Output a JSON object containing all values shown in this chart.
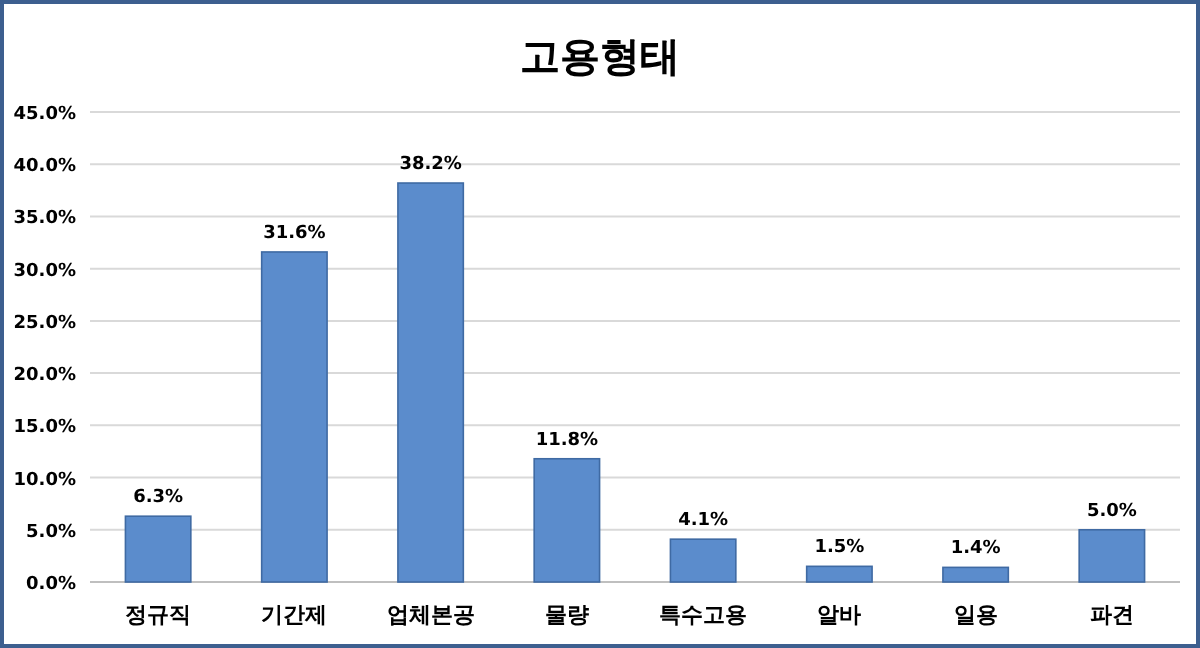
{
  "chart_data": {
    "type": "bar",
    "title": "고용형태",
    "categories": [
      "정규직",
      "기간제",
      "업체본공",
      "물량",
      "특수고용",
      "알바",
      "일용",
      "파견"
    ],
    "values": [
      6.3,
      31.6,
      38.2,
      11.8,
      4.1,
      1.5,
      1.4,
      5.0
    ],
    "value_labels": [
      "6.3%",
      "31.6%",
      "38.2%",
      "11.8%",
      "4.1%",
      "1.5%",
      "1.4%",
      "5.0%"
    ],
    "color": "#5b8ccc",
    "ylim": [
      0,
      45
    ],
    "yticks": [
      {
        "value": 0,
        "label": "0.0%"
      },
      {
        "value": 5,
        "label": "5.0%"
      },
      {
        "value": 10,
        "label": "10.0%"
      },
      {
        "value": 15,
        "label": "15.0%"
      },
      {
        "value": 20,
        "label": "20.0%"
      },
      {
        "value": 25,
        "label": "25.0%"
      },
      {
        "value": 30,
        "label": "30.0%"
      },
      {
        "value": 35,
        "label": "35.0%"
      },
      {
        "value": 40,
        "label": "40.0%"
      },
      {
        "value": 45,
        "label": "45.0%"
      }
    ],
    "grid": "y"
  }
}
